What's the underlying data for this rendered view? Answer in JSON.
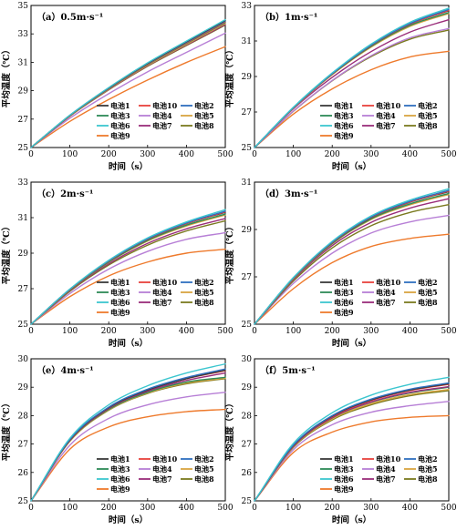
{
  "series_styles": [
    {
      "name": "电池1",
      "color": "#3a3a3a"
    },
    {
      "name": "电池10",
      "color": "#e8423c"
    },
    {
      "name": "电池2",
      "color": "#2f6fbf"
    },
    {
      "name": "电池3",
      "color": "#2e8b57"
    },
    {
      "name": "电池4",
      "color": "#b77fd6"
    },
    {
      "name": "电池5",
      "color": "#d9a441"
    },
    {
      "name": "电池6",
      "color": "#3cc6cf"
    },
    {
      "name": "电池7",
      "color": "#9a2d7a"
    },
    {
      "name": "电池8",
      "color": "#7a7a1f"
    },
    {
      "name": "电池9",
      "color": "#ee7a2c"
    }
  ],
  "chart_data": [
    {
      "type": "line",
      "title": "（a）0.5m·s⁻¹",
      "xlabel": "时间（s）",
      "ylabel": "平均温度（℃）",
      "xlim": [
        0,
        500
      ],
      "ylim": [
        25,
        35
      ],
      "xticks": [
        0,
        100,
        200,
        300,
        400,
        500
      ],
      "yticks": [
        25,
        27,
        29,
        31,
        33,
        35
      ],
      "grid": false,
      "legend_position": "bottom-right",
      "x": [
        0,
        100,
        200,
        300,
        400,
        500
      ],
      "series": [
        {
          "name": "电池1",
          "values": [
            25.0,
            27.27,
            29.2,
            30.93,
            32.45,
            33.95
          ]
        },
        {
          "name": "电池10",
          "values": [
            25.0,
            27.25,
            29.16,
            30.87,
            32.37,
            33.85
          ]
        },
        {
          "name": "电池2",
          "values": [
            25.0,
            27.26,
            29.18,
            30.9,
            32.41,
            33.9
          ]
        },
        {
          "name": "电池3",
          "values": [
            25.0,
            27.24,
            29.14,
            30.84,
            32.33,
            33.8
          ]
        },
        {
          "name": "电池4",
          "values": [
            25.0,
            27.06,
            28.79,
            30.33,
            31.7,
            33.05
          ]
        },
        {
          "name": "电池5",
          "values": [
            25.0,
            27.22,
            29.11,
            30.79,
            32.27,
            33.73
          ]
        },
        {
          "name": "电池6",
          "values": [
            25.0,
            27.28,
            29.22,
            30.96,
            32.49,
            34.0
          ]
        },
        {
          "name": "电池7",
          "values": [
            25.0,
            27.21,
            29.08,
            30.75,
            32.22,
            33.66
          ]
        },
        {
          "name": "电池8",
          "values": [
            25.0,
            27.2,
            29.06,
            30.72,
            32.18,
            33.62
          ]
        },
        {
          "name": "电池9",
          "values": [
            25.0,
            26.84,
            28.38,
            29.75,
            30.99,
            32.1
          ]
        }
      ]
    },
    {
      "type": "line",
      "title": "（b）1m·s⁻¹",
      "xlabel": "时间（s）",
      "ylabel": "平均温度（℃）",
      "xlim": [
        0,
        500
      ],
      "ylim": [
        25,
        33
      ],
      "xticks": [
        0,
        100,
        200,
        300,
        400,
        500
      ],
      "yticks": [
        25,
        27,
        29,
        31,
        33
      ],
      "grid": false,
      "legend_position": "bottom-right",
      "x": [
        0,
        100,
        200,
        300,
        400,
        500
      ],
      "series": [
        {
          "name": "电池1",
          "values": [
            25.0,
            27.25,
            29.15,
            30.75,
            31.95,
            32.7
          ]
        },
        {
          "name": "电池10",
          "values": [
            25.0,
            27.25,
            29.15,
            30.75,
            31.95,
            32.72
          ]
        },
        {
          "name": "电池2",
          "values": [
            25.0,
            27.25,
            29.16,
            30.77,
            31.98,
            32.78
          ]
        },
        {
          "name": "电池3",
          "values": [
            25.0,
            27.24,
            29.13,
            30.7,
            31.88,
            32.6
          ]
        },
        {
          "name": "电池4",
          "values": [
            25.0,
            27.05,
            28.78,
            30.17,
            31.18,
            31.7
          ]
        },
        {
          "name": "电池5",
          "values": [
            25.0,
            27.22,
            29.1,
            30.65,
            31.82,
            32.55
          ]
        },
        {
          "name": "电池6",
          "values": [
            25.0,
            27.27,
            29.2,
            30.82,
            32.05,
            32.85
          ]
        },
        {
          "name": "电池7",
          "values": [
            25.0,
            27.18,
            28.95,
            30.4,
            31.5,
            32.2
          ]
        },
        {
          "name": "电池8",
          "values": [
            25.0,
            27.04,
            28.76,
            30.12,
            31.1,
            31.62
          ]
        },
        {
          "name": "电池9",
          "values": [
            25.0,
            26.88,
            28.3,
            29.38,
            30.1,
            30.42
          ]
        }
      ]
    },
    {
      "type": "line",
      "title": "（c）2m·s⁻¹",
      "xlabel": "时间（s）",
      "ylabel": "平均温度（℃）",
      "xlim": [
        0,
        500
      ],
      "ylim": [
        25,
        33
      ],
      "xticks": [
        0,
        100,
        200,
        300,
        400,
        500
      ],
      "yticks": [
        25,
        27,
        29,
        31,
        33
      ],
      "grid": false,
      "legend_position": "bottom-right",
      "x": [
        0,
        100,
        200,
        300,
        400,
        500
      ],
      "series": [
        {
          "name": "电池1",
          "values": [
            25.0,
            26.96,
            28.55,
            29.78,
            30.66,
            31.3
          ]
        },
        {
          "name": "电池10",
          "values": [
            25.0,
            26.96,
            28.55,
            29.78,
            30.67,
            31.32
          ]
        },
        {
          "name": "电池2",
          "values": [
            25.0,
            26.97,
            28.57,
            29.81,
            30.7,
            31.36
          ]
        },
        {
          "name": "电池3",
          "values": [
            25.0,
            26.94,
            28.5,
            29.72,
            30.58,
            31.2
          ]
        },
        {
          "name": "电池4",
          "values": [
            25.0,
            26.73,
            28.1,
            29.1,
            29.78,
            30.15
          ]
        },
        {
          "name": "电池5",
          "values": [
            25.0,
            26.93,
            28.48,
            29.68,
            30.53,
            31.15
          ]
        },
        {
          "name": "电池6",
          "values": [
            25.0,
            26.98,
            28.6,
            29.86,
            30.76,
            31.45
          ]
        },
        {
          "name": "电池7",
          "values": [
            25.0,
            26.9,
            28.4,
            29.55,
            30.37,
            30.95
          ]
        },
        {
          "name": "电池8",
          "values": [
            25.0,
            26.85,
            28.33,
            29.45,
            30.25,
            30.82
          ]
        },
        {
          "name": "电池9",
          "values": [
            25.0,
            26.55,
            27.72,
            28.5,
            29.0,
            29.22
          ]
        }
      ]
    },
    {
      "type": "line",
      "title": "（d）3m·s⁻¹",
      "xlabel": "时间（s）",
      "ylabel": "平均温度（℃）",
      "xlim": [
        0,
        500
      ],
      "ylim": [
        25,
        31
      ],
      "xticks": [
        0,
        100,
        200,
        300,
        400,
        500
      ],
      "yticks": [
        25,
        27,
        29,
        31
      ],
      "grid": false,
      "legend_position": "bottom-right",
      "x": [
        0,
        100,
        200,
        300,
        400,
        500
      ],
      "series": [
        {
          "name": "电池1",
          "values": [
            25.0,
            26.95,
            28.45,
            29.5,
            30.15,
            30.6
          ]
        },
        {
          "name": "电池10",
          "values": [
            25.0,
            26.95,
            28.45,
            29.51,
            30.16,
            30.62
          ]
        },
        {
          "name": "电池2",
          "values": [
            25.0,
            26.96,
            28.47,
            29.53,
            30.19,
            30.65
          ]
        },
        {
          "name": "电池3",
          "values": [
            25.0,
            26.93,
            28.41,
            29.45,
            30.08,
            30.52
          ]
        },
        {
          "name": "电池4",
          "values": [
            25.0,
            26.72,
            28.0,
            28.85,
            29.32,
            29.6
          ]
        },
        {
          "name": "电池5",
          "values": [
            25.0,
            26.92,
            28.39,
            29.42,
            30.04,
            30.48
          ]
        },
        {
          "name": "电池6",
          "values": [
            25.0,
            26.97,
            28.5,
            29.57,
            30.24,
            30.72
          ]
        },
        {
          "name": "电池7",
          "values": [
            25.0,
            26.88,
            28.32,
            29.3,
            29.9,
            30.3
          ]
        },
        {
          "name": "电池8",
          "values": [
            25.0,
            26.82,
            28.22,
            29.16,
            29.72,
            30.05
          ]
        },
        {
          "name": "电池9",
          "values": [
            25.0,
            26.5,
            27.6,
            28.28,
            28.62,
            28.8
          ]
        }
      ]
    },
    {
      "type": "line",
      "title": "（e）4m·s⁻¹",
      "xlabel": "时间（s）",
      "ylabel": "平均温度（℃）",
      "xlim": [
        0,
        500
      ],
      "ylim": [
        25,
        30
      ],
      "xticks": [
        0,
        100,
        200,
        300,
        400,
        500
      ],
      "yticks": [
        25,
        26,
        27,
        28,
        29,
        30
      ],
      "grid": false,
      "legend_position": "bottom-right",
      "x": [
        0,
        100,
        200,
        300,
        400,
        500
      ],
      "series": [
        {
          "name": "电池1",
          "values": [
            25.0,
            27.15,
            28.28,
            28.9,
            29.3,
            29.6
          ]
        },
        {
          "name": "电池10",
          "values": [
            25.0,
            27.14,
            28.27,
            28.9,
            29.3,
            29.58
          ]
        },
        {
          "name": "电池2",
          "values": [
            25.0,
            27.16,
            28.3,
            28.93,
            29.34,
            29.64
          ]
        },
        {
          "name": "电池3",
          "values": [
            25.0,
            27.12,
            28.22,
            28.82,
            29.18,
            29.35
          ]
        },
        {
          "name": "电池4",
          "values": [
            25.0,
            26.96,
            27.9,
            28.38,
            28.66,
            28.82
          ]
        },
        {
          "name": "电池5",
          "values": [
            25.0,
            27.1,
            28.2,
            28.8,
            29.15,
            29.32
          ]
        },
        {
          "name": "电池6",
          "values": [
            25.0,
            27.2,
            28.38,
            29.05,
            29.5,
            29.82
          ]
        },
        {
          "name": "电池7",
          "values": [
            25.0,
            27.13,
            28.25,
            28.86,
            29.24,
            29.5
          ]
        },
        {
          "name": "电池8",
          "values": [
            25.0,
            27.1,
            28.19,
            28.78,
            29.12,
            29.3
          ]
        },
        {
          "name": "电池9",
          "values": [
            25.0,
            26.82,
            27.6,
            27.96,
            28.14,
            28.22
          ]
        }
      ]
    },
    {
      "type": "line",
      "title": "（f）5m·s⁻¹",
      "xlabel": "时间（s）",
      "ylabel": "平均温度（℃）",
      "xlim": [
        0,
        500
      ],
      "ylim": [
        25,
        30
      ],
      "xticks": [
        0,
        100,
        200,
        300,
        400,
        500
      ],
      "yticks": [
        25,
        26,
        27,
        28,
        29,
        30
      ],
      "grid": false,
      "legend_position": "bottom-right",
      "x": [
        0,
        100,
        200,
        300,
        400,
        500
      ],
      "series": [
        {
          "name": "电池1",
          "values": [
            25.0,
            26.95,
            27.98,
            28.55,
            28.9,
            29.12
          ]
        },
        {
          "name": "电池10",
          "values": [
            25.0,
            26.94,
            27.96,
            28.53,
            28.88,
            29.1
          ]
        },
        {
          "name": "电池2",
          "values": [
            25.0,
            26.96,
            28.0,
            28.58,
            28.93,
            29.15
          ]
        },
        {
          "name": "电池3",
          "values": [
            25.0,
            26.92,
            27.92,
            28.47,
            28.8,
            29.0
          ]
        },
        {
          "name": "电池4",
          "values": [
            25.0,
            26.8,
            27.68,
            28.12,
            28.35,
            28.5
          ]
        },
        {
          "name": "电池5",
          "values": [
            25.0,
            26.9,
            27.88,
            28.42,
            28.74,
            28.92
          ]
        },
        {
          "name": "电池6",
          "values": [
            25.0,
            27.02,
            28.1,
            28.72,
            29.1,
            29.35
          ]
        },
        {
          "name": "电池7",
          "values": [
            25.0,
            26.92,
            27.93,
            28.48,
            28.82,
            29.02
          ]
        },
        {
          "name": "电池8",
          "values": [
            25.0,
            26.88,
            27.85,
            28.38,
            28.7,
            28.88
          ]
        },
        {
          "name": "电池9",
          "values": [
            25.0,
            26.7,
            27.42,
            27.78,
            27.94,
            28.0
          ]
        }
      ]
    }
  ]
}
